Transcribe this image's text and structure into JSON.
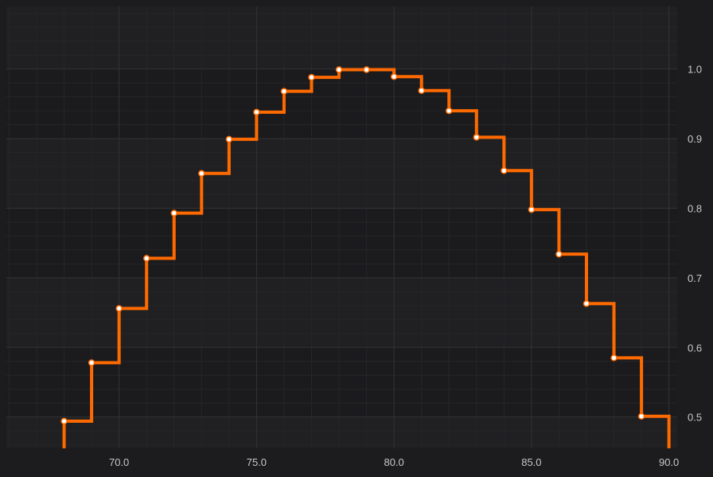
{
  "chart_data": {
    "type": "line",
    "style": "step-after",
    "x": [
      68,
      69,
      70,
      71,
      72,
      73,
      74,
      75,
      76,
      77,
      78,
      79,
      80,
      81,
      82,
      83,
      84,
      85,
      86,
      87,
      88,
      89,
      90
    ],
    "y": [
      0.494,
      0.578,
      0.656,
      0.728,
      0.793,
      0.85,
      0.899,
      0.938,
      0.968,
      0.988,
      0.999,
      0.999,
      0.989,
      0.969,
      0.94,
      0.902,
      0.854,
      0.798,
      0.734,
      0.663,
      0.585,
      0.501,
      0.413
    ],
    "xlim": [
      65.9,
      90.3
    ],
    "ylim": [
      0.455,
      1.09
    ],
    "x_ticks": [
      70,
      75,
      80,
      85,
      90
    ],
    "x_tick_labels": [
      "70.0",
      "75.0",
      "80.0",
      "85.0",
      "90.0"
    ],
    "y_ticks": [
      0.5,
      0.6,
      0.7,
      0.8,
      0.9,
      1.0
    ],
    "y_tick_labels": [
      "0.5",
      "0.6",
      "0.7",
      "0.8",
      "0.9",
      "1.0"
    ],
    "x_axis_position": "bottom",
    "y_axis_position": "right",
    "grid": true,
    "minor_grid": true,
    "legend": "none",
    "title": "",
    "xlabel": "",
    "ylabel": "",
    "colors": {
      "background": "#1c1c1e",
      "plot_band_a": "#202022",
      "plot_band_b": "#1b1b1d",
      "major_grid": "#333336",
      "minor_grid": "#262629",
      "line": "#ff6a00",
      "marker_fill": "#ffffff",
      "marker_stroke": "#ff6a00",
      "tick_label": "#c8c8c8"
    }
  }
}
